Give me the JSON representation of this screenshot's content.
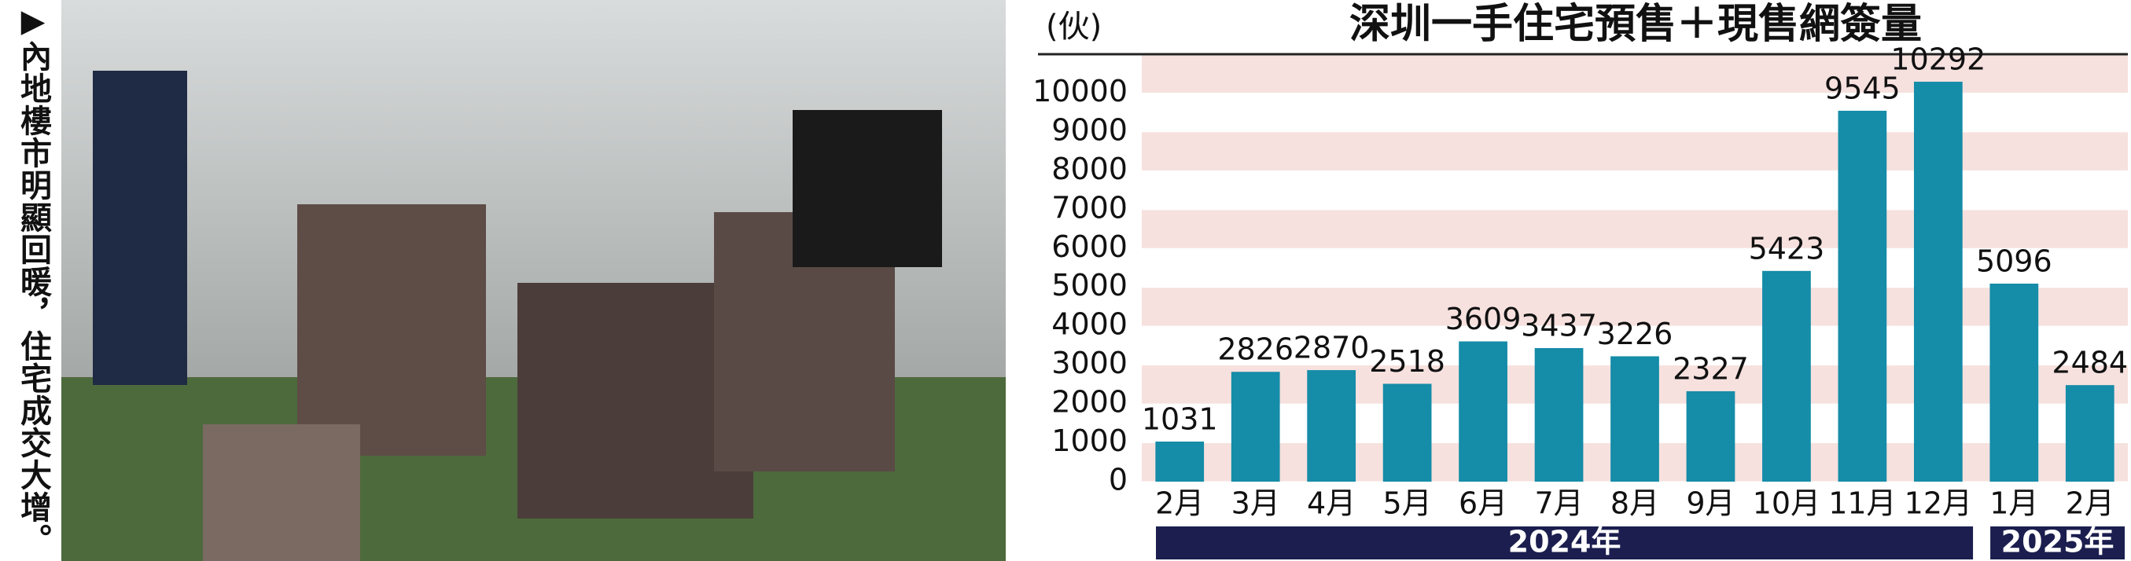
{
  "caption": "▶內地樓市明顯回暖，住宅成交大增。",
  "chart_data": {
    "type": "bar",
    "title": "深圳一手住宅預售＋現售網簽量",
    "unit": "(伙)",
    "categories": [
      "2月",
      "3月",
      "4月",
      "5月",
      "6月",
      "7月",
      "8月",
      "9月",
      "10月",
      "11月",
      "12月",
      "1月",
      "2月"
    ],
    "values": [
      1031,
      2826,
      2870,
      2518,
      3609,
      3437,
      3226,
      2327,
      5423,
      9545,
      10292,
      5096,
      2484
    ],
    "color": "#158ca8",
    "groups": [
      {
        "label": "2024年",
        "count": 11
      },
      {
        "label": "2025年",
        "count": 2
      }
    ],
    "ylim": [
      0,
      11000
    ],
    "yticks": [
      0,
      1000,
      2000,
      3000,
      4000,
      5000,
      6000,
      7000,
      8000,
      9000,
      10000
    ],
    "grid": true
  }
}
